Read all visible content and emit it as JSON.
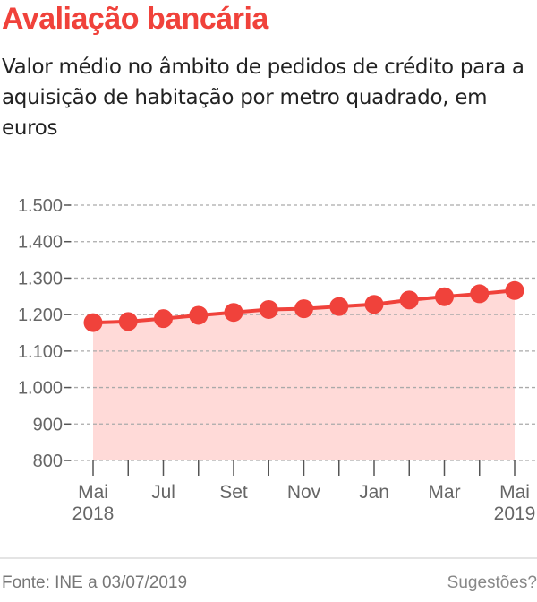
{
  "title": "Avaliação bancária",
  "subtitle": "Valor médio no âmbito de pedidos de crédito para a aquisição de habitação por metro quadrado, em euros",
  "footer": {
    "source": "Fonte: INE a 03/07/2019",
    "suggestions": "Sugestões?"
  },
  "colors": {
    "accent": "#f0423b",
    "area": "#ffdad8"
  },
  "chart_data": {
    "type": "area",
    "x": [
      "2018-05",
      "2018-06",
      "2018-07",
      "2018-08",
      "2018-09",
      "2018-10",
      "2018-11",
      "2018-12",
      "2019-01",
      "2019-02",
      "2019-03",
      "2019-04",
      "2019-05"
    ],
    "values": [
      1178,
      1181,
      1189,
      1198,
      1206,
      1214,
      1216,
      1222,
      1228,
      1240,
      1249,
      1257,
      1266
    ],
    "ylim": [
      800,
      1500
    ],
    "yticks": [
      800,
      900,
      1000,
      1100,
      1200,
      1300,
      1400,
      1500
    ],
    "ytick_labels": [
      "800",
      "900",
      "1.000",
      "1.100",
      "1.200",
      "1.300",
      "1.400",
      "1.500"
    ],
    "xtick_labels": [
      {
        "month": "Mai",
        "year": "2018",
        "index": 0
      },
      {
        "month": "Jul",
        "year": "",
        "index": 2
      },
      {
        "month": "Set",
        "year": "",
        "index": 4
      },
      {
        "month": "Nov",
        "year": "",
        "index": 6
      },
      {
        "month": "Jan",
        "year": "",
        "index": 8
      },
      {
        "month": "Mar",
        "year": "",
        "index": 10
      },
      {
        "month": "Mai",
        "year": "2019",
        "index": 12
      }
    ],
    "grid": true,
    "markers": true
  }
}
